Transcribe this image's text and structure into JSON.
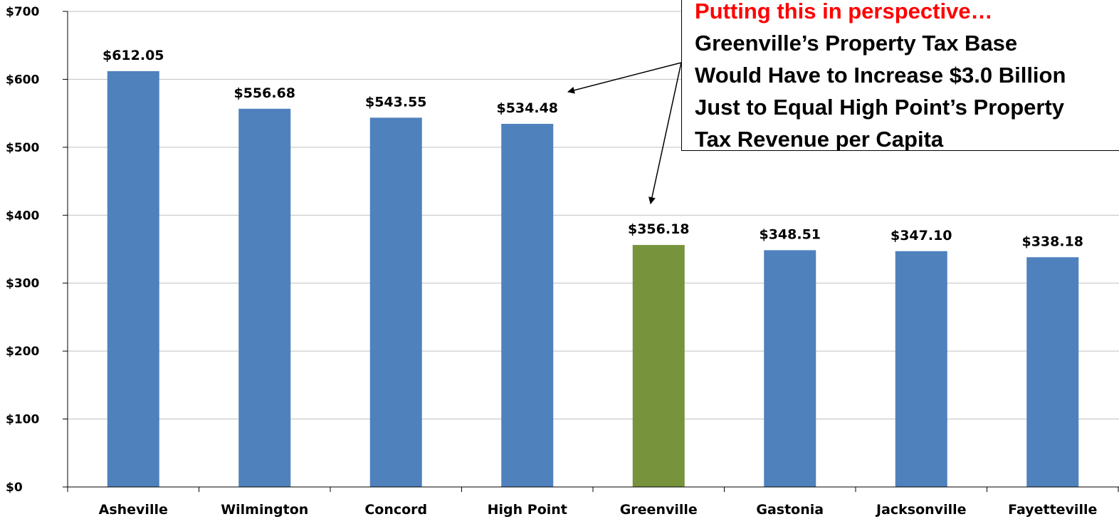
{
  "colors": {
    "default_bar": "#4f81bd",
    "highlight_bar": "#77933c",
    "callout_heading": "#ff0000",
    "gridline": "#bfbfbf"
  },
  "chart_data": {
    "type": "bar",
    "categories": [
      "Asheville",
      "Wilmington",
      "Concord",
      "High Point",
      "Greenville",
      "Gastonia",
      "Jacksonville",
      "Fayetteville"
    ],
    "values": [
      612.05,
      556.68,
      543.55,
      534.48,
      356.18,
      348.51,
      347.1,
      338.18
    ],
    "value_labels": [
      "$612.05",
      "$556.68",
      "$543.55",
      "$534.48",
      "$356.18",
      "$348.51",
      "$347.10",
      "$338.18"
    ],
    "highlight_category": "Greenville",
    "ylim": [
      0,
      700
    ],
    "yticks": [
      0,
      100,
      200,
      300,
      400,
      500,
      600,
      700
    ],
    "ytick_labels": [
      "$0",
      "$100",
      "$200",
      "$300",
      "$400",
      "$500",
      "$600",
      "$700"
    ],
    "grid": true,
    "legend": "none",
    "annotation": {
      "heading": "Putting this in perspective…",
      "lines": [
        "Greenville’s Property Tax Base",
        "Would Have to Increase $3.0 Billion",
        "Just to Equal High Point’s Property",
        "Tax Revenue per Capita"
      ],
      "points_to": [
        "High Point",
        "Greenville"
      ]
    }
  }
}
